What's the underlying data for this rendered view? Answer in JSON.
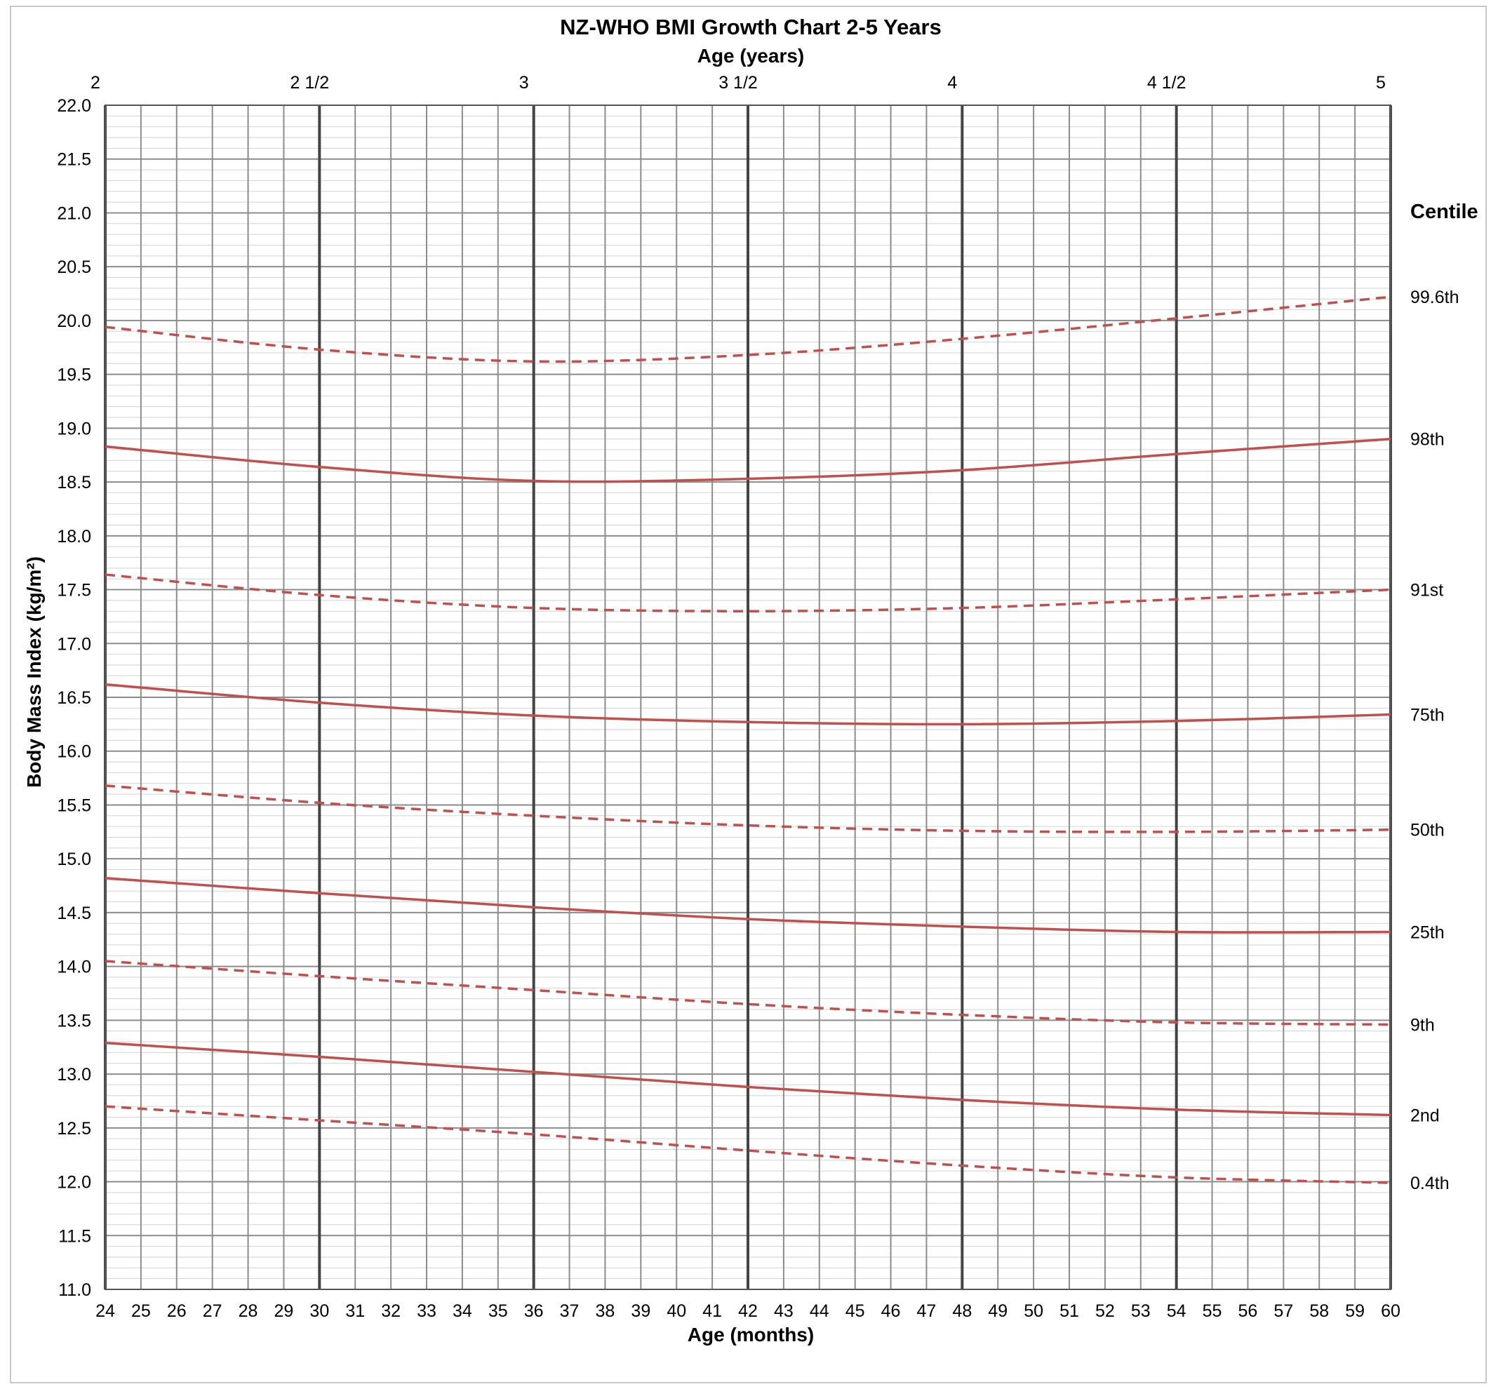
{
  "chart_data": {
    "type": "line",
    "title": "NZ-WHO BMI Growth Chart 2-5 Years",
    "xlabel": "Age (months)",
    "x2label": "Age (years)",
    "ylabel": "Body Mass Index (kg/m²)",
    "xlim": [
      24,
      60
    ],
    "ylim": [
      11.0,
      22.0
    ],
    "grid": true,
    "x_ticks": [
      "24",
      "25",
      "26",
      "27",
      "28",
      "29",
      "30",
      "31",
      "32",
      "33",
      "34",
      "35",
      "36",
      "37",
      "38",
      "39",
      "40",
      "41",
      "42",
      "43",
      "44",
      "45",
      "46",
      "47",
      "48",
      "49",
      "50",
      "51",
      "52",
      "53",
      "54",
      "55",
      "56",
      "57",
      "58",
      "59",
      "60"
    ],
    "x2_ticks": [
      {
        "value": 24,
        "label": "2"
      },
      {
        "value": 30,
        "label": "2 1/2"
      },
      {
        "value": 36,
        "label": "3"
      },
      {
        "value": 42,
        "label": "3 1/2"
      },
      {
        "value": 48,
        "label": "4"
      },
      {
        "value": 54,
        "label": "4 1/2"
      },
      {
        "value": 60,
        "label": "5"
      }
    ],
    "y_ticks": [
      "11.0",
      "11.5",
      "12.0",
      "12.5",
      "13.0",
      "13.5",
      "14.0",
      "14.5",
      "15.0",
      "15.5",
      "16.0",
      "16.5",
      "17.0",
      "17.5",
      "18.0",
      "18.5",
      "19.0",
      "19.5",
      "20.0",
      "20.5",
      "21.0",
      "21.5",
      "22.0"
    ],
    "legend_title": "Centile",
    "line_color": "#c0504d",
    "x": [
      24,
      30,
      36,
      42,
      48,
      54,
      60
    ],
    "series": [
      {
        "name": "99.6th",
        "style": "dashed",
        "values": [
          19.94,
          19.73,
          19.62,
          19.68,
          19.83,
          20.02,
          20.22
        ]
      },
      {
        "name": "98th",
        "style": "solid",
        "values": [
          18.83,
          18.64,
          18.51,
          18.53,
          18.61,
          18.76,
          18.9
        ]
      },
      {
        "name": "91st",
        "style": "dashed",
        "values": [
          17.64,
          17.45,
          17.33,
          17.3,
          17.33,
          17.41,
          17.5
        ]
      },
      {
        "name": "75th",
        "style": "solid",
        "values": [
          16.62,
          16.45,
          16.33,
          16.27,
          16.25,
          16.28,
          16.34
        ]
      },
      {
        "name": "50th",
        "style": "dashed",
        "values": [
          15.68,
          15.52,
          15.4,
          15.31,
          15.26,
          15.25,
          15.27
        ]
      },
      {
        "name": "25th",
        "style": "solid",
        "values": [
          14.82,
          14.68,
          14.55,
          14.44,
          14.37,
          14.32,
          14.32
        ]
      },
      {
        "name": "9th",
        "style": "dashed",
        "values": [
          14.05,
          13.91,
          13.78,
          13.65,
          13.55,
          13.48,
          13.46
        ]
      },
      {
        "name": "2nd",
        "style": "solid",
        "values": [
          13.29,
          13.16,
          13.02,
          12.88,
          12.76,
          12.67,
          12.62
        ]
      },
      {
        "name": "0.4th",
        "style": "dashed",
        "values": [
          12.7,
          12.57,
          12.44,
          12.29,
          12.15,
          12.04,
          11.99
        ]
      }
    ]
  }
}
